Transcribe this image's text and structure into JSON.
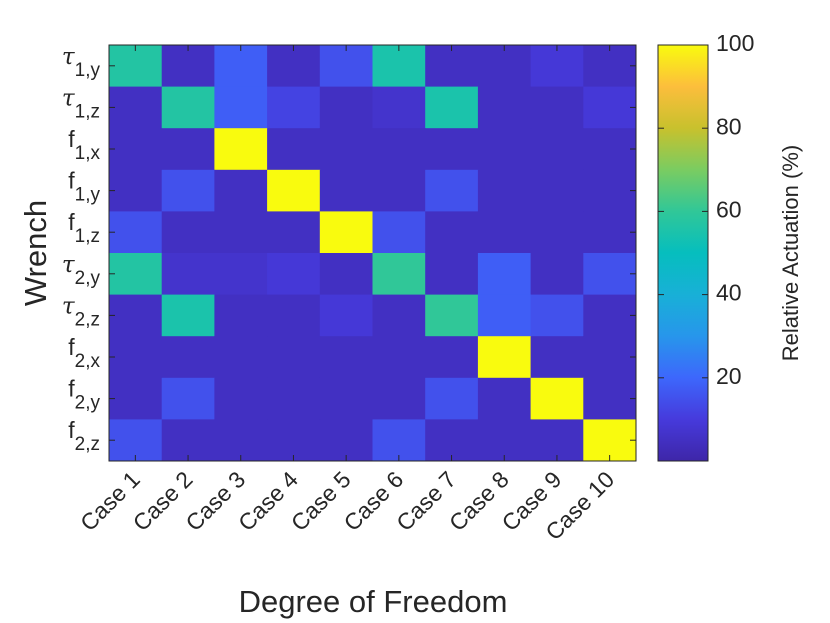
{
  "chart_data": {
    "type": "heatmap",
    "title": "",
    "xlabel": "Degree of Freedom",
    "ylabel": "Wrench",
    "x_categories": [
      "Case 1",
      "Case 2",
      "Case 3",
      "Case 4",
      "Case 5",
      "Case 6",
      "Case 7",
      "Case 8",
      "Case 9",
      "Case 10"
    ],
    "y_categories": [
      {
        "sym": "τ",
        "sub": "1,y"
      },
      {
        "sym": "τ",
        "sub": "1,z"
      },
      {
        "sym": "f",
        "sub": "1,x"
      },
      {
        "sym": "f",
        "sub": "1,y"
      },
      {
        "sym": "f",
        "sub": "1,z"
      },
      {
        "sym": "τ",
        "sub": "2,y"
      },
      {
        "sym": "τ",
        "sub": "2,z"
      },
      {
        "sym": "f",
        "sub": "2,x"
      },
      {
        "sym": "f",
        "sub": "2,y"
      },
      {
        "sym": "f",
        "sub": "2,z"
      }
    ],
    "values": [
      [
        57,
        5,
        18,
        5,
        15,
        55,
        5,
        5,
        9,
        5
      ],
      [
        5,
        57,
        18,
        12,
        5,
        7,
        55,
        5,
        5,
        9
      ],
      [
        5,
        5,
        100,
        5,
        5,
        5,
        5,
        5,
        5,
        5
      ],
      [
        5,
        15,
        5,
        100,
        5,
        5,
        15,
        5,
        5,
        5
      ],
      [
        15,
        5,
        5,
        5,
        100,
        15,
        5,
        5,
        5,
        5
      ],
      [
        57,
        7,
        7,
        9,
        5,
        60,
        5,
        18,
        5,
        15
      ],
      [
        5,
        55,
        5,
        5,
        9,
        5,
        60,
        18,
        15,
        5
      ],
      [
        5,
        5,
        5,
        5,
        5,
        5,
        5,
        100,
        5,
        5
      ],
      [
        5,
        15,
        5,
        5,
        5,
        5,
        15,
        5,
        100,
        5
      ],
      [
        15,
        5,
        5,
        5,
        5,
        15,
        5,
        5,
        5,
        100
      ]
    ],
    "colorbar": {
      "label": "Relative Actuation (%)",
      "range": [
        0,
        100
      ],
      "ticks": [
        20,
        40,
        60,
        80,
        100
      ],
      "colormap": "parula"
    }
  }
}
